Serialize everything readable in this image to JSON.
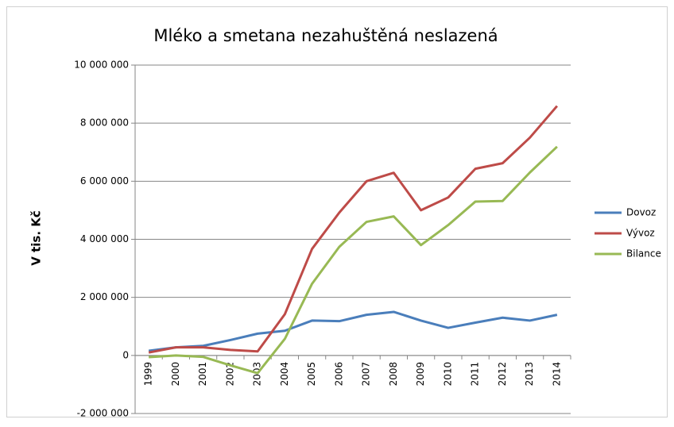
{
  "chart_data": {
    "type": "line",
    "title": "Mléko a smetana nezahuštěná neslazená",
    "y_label": "V tis. Kč",
    "categories": [
      "1999",
      "2000",
      "2001",
      "2002",
      "2003",
      "2004",
      "2005",
      "2006",
      "2007",
      "2008",
      "2009",
      "2010",
      "2011",
      "2012",
      "2013",
      "2014"
    ],
    "series": [
      {
        "name": "Dovoz",
        "color": "#4a7ebb",
        "values": [
          160000,
          280000,
          330000,
          530000,
          750000,
          850000,
          1200000,
          1180000,
          1400000,
          1500000,
          1200000,
          950000,
          1130000,
          1300000,
          1200000,
          1400000
        ]
      },
      {
        "name": "Vývoz",
        "color": "#be4b48",
        "values": [
          100000,
          280000,
          280000,
          190000,
          140000,
          1420000,
          3670000,
          4920000,
          6000000,
          6290000,
          5000000,
          5440000,
          6430000,
          6620000,
          7500000,
          8590000
        ]
      },
      {
        "name": "Bilance",
        "color": "#98b954",
        "values": [
          -60000,
          0,
          -50000,
          -340000,
          -610000,
          570000,
          2470000,
          3740000,
          4600000,
          4790000,
          3800000,
          4490000,
          5300000,
          5320000,
          6300000,
          7190000
        ]
      }
    ],
    "ylim": [
      -2000000,
      10000000
    ],
    "yticks": [
      {
        "value": -2000000,
        "label": "-2 000 000"
      },
      0,
      {
        "value": 2000000,
        "label": "2 000 000"
      },
      {
        "value": 4000000,
        "label": "4 000 000"
      },
      {
        "value": 6000000,
        "label": "6 000 000"
      },
      {
        "value": 8000000,
        "label": "8 000 000"
      },
      {
        "value": 10000000,
        "label": "10 000 000"
      }
    ],
    "grid": true,
    "legend": "right"
  }
}
